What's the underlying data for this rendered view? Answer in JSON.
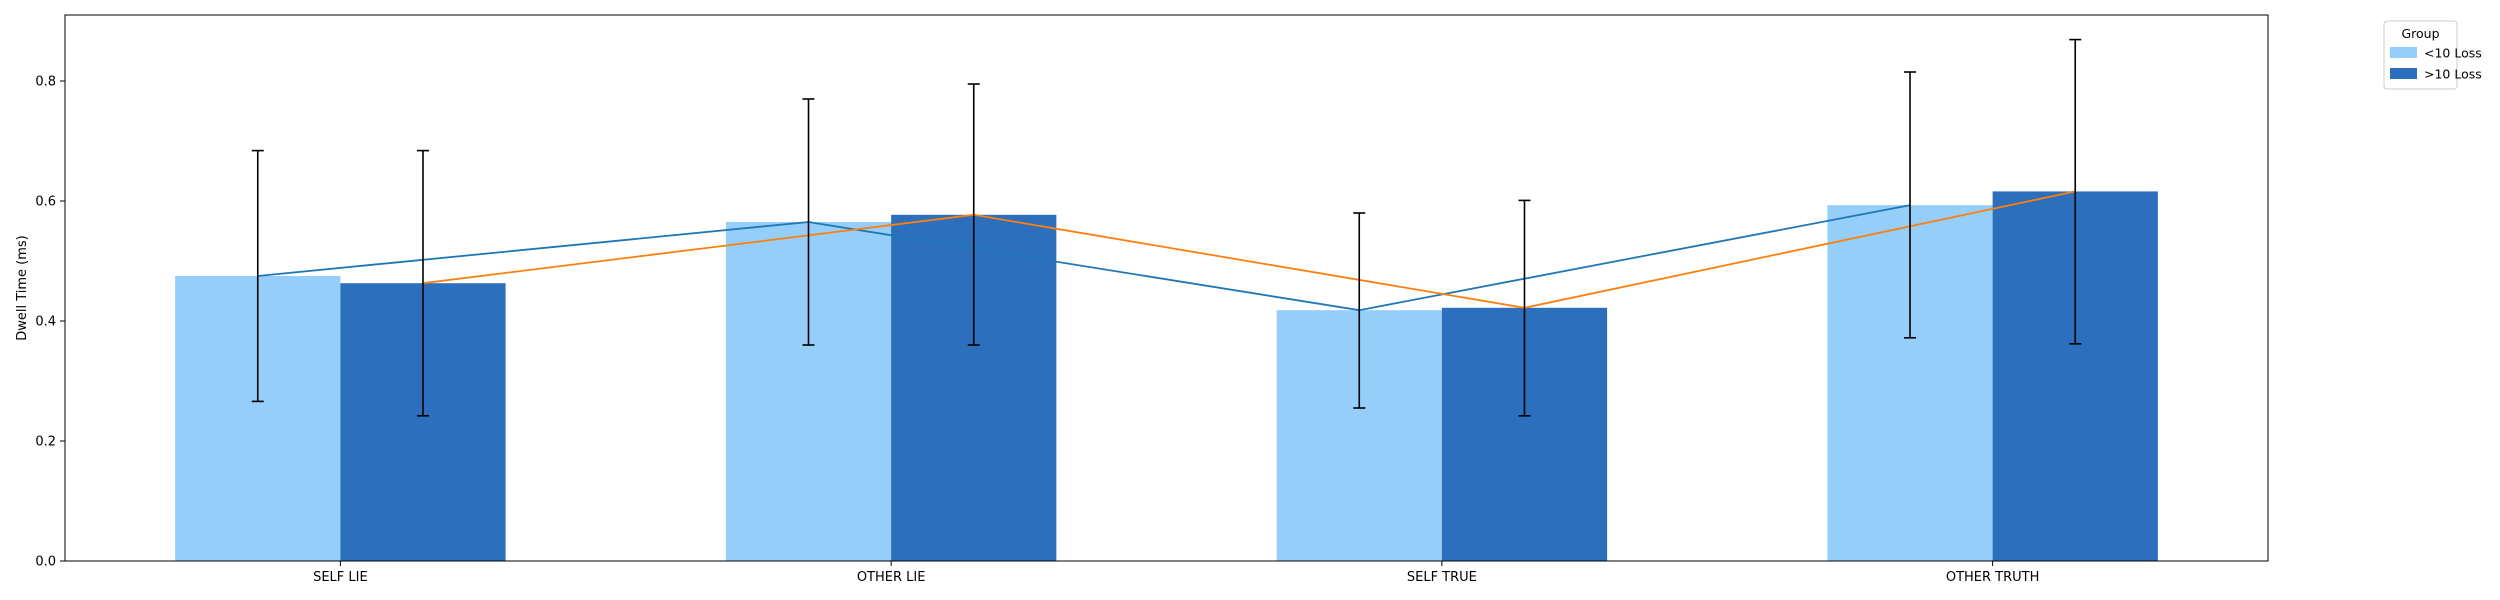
{
  "chart_data": {
    "type": "bar",
    "title": "",
    "xlabel": "",
    "ylabel": "Dwell Time (ms)",
    "ylim": [
      0,
      0.91
    ],
    "yticks": [
      "0.0",
      "0.2",
      "0.4",
      "0.6",
      "0.8"
    ],
    "categories": [
      "SELF LIE",
      "OTHER LIE",
      "SELF TRUE",
      "OTHER TRUTH"
    ],
    "series": [
      {
        "name": "<10 Loss",
        "color": "#96cefa",
        "line_color": "#1f77b4",
        "values": [
          0.475,
          0.565,
          0.418,
          0.593
        ],
        "error_low": [
          0.266,
          0.36,
          0.255,
          0.372
        ],
        "error_high": [
          0.684,
          0.77,
          0.58,
          0.815
        ]
      },
      {
        "name": ">10 Loss",
        "color": "#2b6fbd",
        "line_color": "#ff7f0e",
        "values": [
          0.463,
          0.577,
          0.422,
          0.616
        ],
        "error_low": [
          0.242,
          0.36,
          0.242,
          0.362
        ],
        "error_high": [
          0.684,
          0.795,
          0.601,
          0.869
        ]
      }
    ],
    "legend": {
      "title": "Group",
      "position": "outside-top-right"
    },
    "grid": false
  }
}
